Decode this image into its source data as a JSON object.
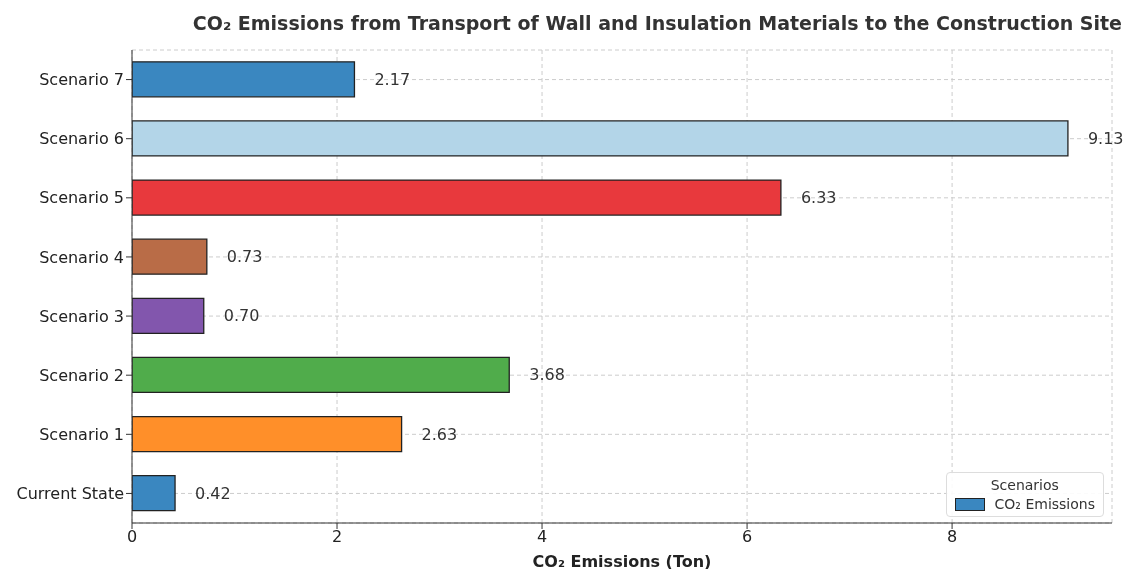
{
  "chart_data": {
    "type": "bar",
    "orientation": "horizontal",
    "title": "CO₂ Emissions from Transport of Wall and Insulation Materials to the Construction Site",
    "xlabel": "CO₂ Emissions (Ton)",
    "legend_title": "Scenarios",
    "categories": [
      "Scenario 7",
      "Scenario 6",
      "Scenario 5",
      "Scenario 4",
      "Scenario 3",
      "Scenario 2",
      "Scenario 1",
      "Current State"
    ],
    "series": [
      {
        "name": "CO₂ Emissions",
        "color": "#3a87c0",
        "values": [
          2.17,
          9.13,
          6.33,
          0.73,
          0.7,
          3.68,
          2.63,
          0.42
        ],
        "colors": [
          "#3a87c0",
          "#b3d5e8",
          "#e8393d",
          "#b96c47",
          "#8256ad",
          "#50ac4b",
          "#ff8f29",
          "#3a87c0"
        ],
        "value_labels": [
          "2.17",
          "9.13",
          "6.33",
          "0.73",
          "0.70",
          "3.68",
          "2.63",
          "0.42"
        ]
      }
    ],
    "xlim": [
      0,
      9.56
    ],
    "xticks": [
      0,
      2,
      4,
      6,
      8
    ],
    "grid": true,
    "legend": "bottom right"
  }
}
